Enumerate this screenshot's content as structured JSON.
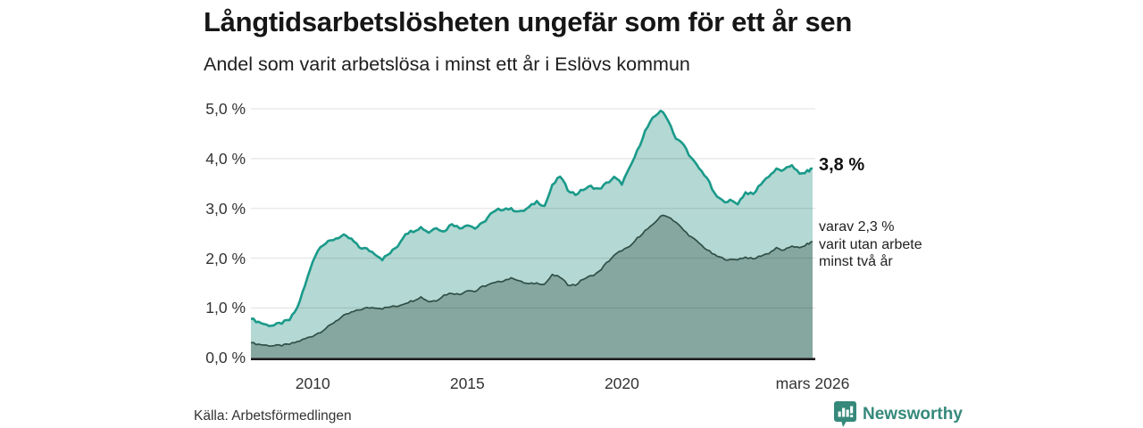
{
  "header": {
    "title": "Långtidsarbetslösheten ungefär som för ett år sen",
    "subtitle": "Andel som varit arbetslösa i minst ett år i Eslövs kommun"
  },
  "chart_data": {
    "type": "area",
    "title": "Långtidsarbetslösheten ungefär som för ett år sen",
    "subtitle": "Andel som varit arbetslösa i minst ett år i Eslövs kommun",
    "unit": "%",
    "grid": "horizontal",
    "x_range": [
      2008,
      2026.17
    ],
    "y_range": [
      0,
      5.25
    ],
    "x_ticks": [
      {
        "t": 2010,
        "label": "2010"
      },
      {
        "t": 2015,
        "label": "2015"
      },
      {
        "t": 2020,
        "label": "2020"
      },
      {
        "t": 2026.17,
        "label": "mars 2026"
      }
    ],
    "y_ticks": [
      {
        "v": 0,
        "label": "0,0 %"
      },
      {
        "v": 1,
        "label": "1,0 %"
      },
      {
        "v": 2,
        "label": "2,0 %"
      },
      {
        "v": 3,
        "label": "3,0 %"
      },
      {
        "v": 4,
        "label": "4,0 %"
      },
      {
        "v": 5,
        "label": "5,0 %"
      }
    ],
    "x": [
      2008,
      2008.25,
      2008.5,
      2008.75,
      2009,
      2009.25,
      2009.5,
      2009.75,
      2010,
      2010.25,
      2010.5,
      2010.75,
      2011,
      2011.25,
      2011.5,
      2011.75,
      2012,
      2012.25,
      2012.5,
      2012.75,
      2013,
      2013.25,
      2013.5,
      2013.75,
      2014,
      2014.25,
      2014.5,
      2014.75,
      2015,
      2015.25,
      2015.5,
      2015.75,
      2016,
      2016.25,
      2016.5,
      2016.75,
      2017,
      2017.25,
      2017.5,
      2017.75,
      2018,
      2018.25,
      2018.5,
      2018.75,
      2019,
      2019.25,
      2019.5,
      2019.75,
      2020,
      2020.25,
      2020.5,
      2020.75,
      2021,
      2021.25,
      2021.5,
      2021.75,
      2022,
      2022.25,
      2022.5,
      2022.75,
      2023,
      2023.25,
      2023.5,
      2023.75,
      2024,
      2024.25,
      2024.5,
      2024.75,
      2025,
      2025.25,
      2025.5,
      2025.75,
      2026,
      2026.17
    ],
    "series": [
      {
        "name": "Andel som varit arbetslösa i minst ett år",
        "line_color": "#1a9a8a",
        "fill_color": "#b4d8d3",
        "line_width": 2.6,
        "last_value": 3.8,
        "values": [
          0.78,
          0.72,
          0.66,
          0.65,
          0.7,
          0.76,
          1.0,
          1.45,
          1.95,
          2.25,
          2.32,
          2.4,
          2.45,
          2.38,
          2.22,
          2.18,
          2.1,
          1.98,
          2.1,
          2.25,
          2.5,
          2.55,
          2.62,
          2.52,
          2.62,
          2.53,
          2.7,
          2.6,
          2.68,
          2.6,
          2.7,
          2.88,
          2.97,
          3.0,
          2.97,
          2.93,
          3.02,
          3.14,
          3.05,
          3.45,
          3.65,
          3.38,
          3.28,
          3.38,
          3.44,
          3.38,
          3.5,
          3.62,
          3.5,
          3.8,
          4.15,
          4.55,
          4.8,
          4.97,
          4.78,
          4.4,
          4.28,
          4.0,
          3.8,
          3.62,
          3.28,
          3.15,
          3.15,
          3.1,
          3.32,
          3.28,
          3.5,
          3.65,
          3.78,
          3.76,
          3.88,
          3.68,
          3.74,
          3.8
        ]
      },
      {
        "name": "varav utan arbete minst två år",
        "line_color": "#2f4f47",
        "fill_color": "#86a79f",
        "line_width": 1.7,
        "last_value": 2.3,
        "values": [
          0.3,
          0.27,
          0.25,
          0.24,
          0.25,
          0.27,
          0.32,
          0.38,
          0.44,
          0.52,
          0.62,
          0.74,
          0.84,
          0.91,
          0.96,
          1.0,
          1.01,
          0.99,
          1.02,
          1.04,
          1.1,
          1.15,
          1.22,
          1.13,
          1.15,
          1.26,
          1.3,
          1.27,
          1.36,
          1.33,
          1.43,
          1.48,
          1.52,
          1.57,
          1.6,
          1.52,
          1.48,
          1.5,
          1.48,
          1.66,
          1.62,
          1.47,
          1.46,
          1.58,
          1.64,
          1.72,
          1.9,
          2.05,
          2.16,
          2.22,
          2.4,
          2.55,
          2.66,
          2.85,
          2.84,
          2.72,
          2.56,
          2.42,
          2.3,
          2.17,
          2.06,
          2.0,
          1.96,
          1.98,
          2.02,
          1.98,
          2.05,
          2.1,
          2.2,
          2.15,
          2.25,
          2.2,
          2.28,
          2.33
        ]
      }
    ],
    "annotations": {
      "last_value_label": "3,8 %",
      "sub_label": "varav 2,3 %\nvarit utan arbete\nminst två år"
    },
    "gridline_color": "rgba(0,0,0,0.10)",
    "axis_line_color": "#1a1a1a"
  },
  "footer": {
    "source": "Källa: Arbetsförmedlingen",
    "brand": "Newsworthy",
    "brand_color": "#35897b"
  }
}
